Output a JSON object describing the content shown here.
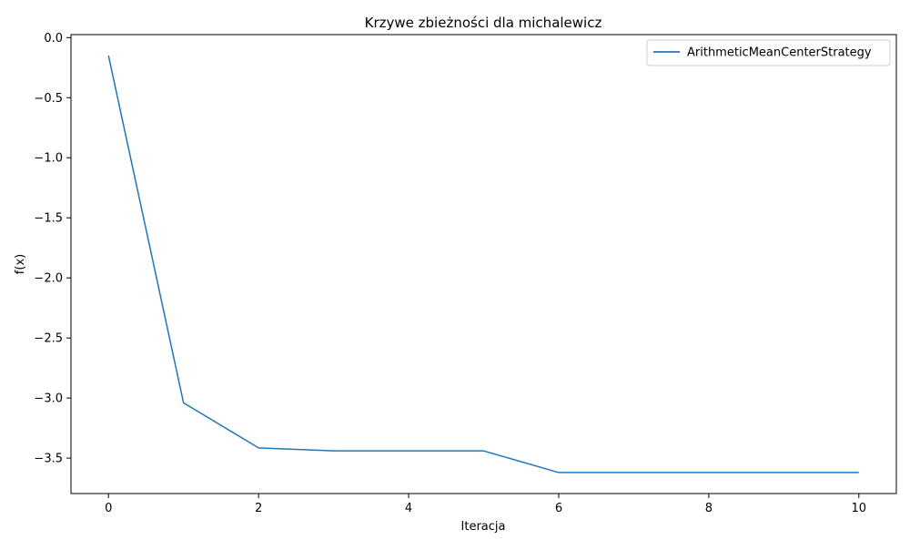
{
  "chart_data": {
    "type": "line",
    "title": "Krzywe zbieżności dla michalewicz",
    "xlabel": "Iteracja",
    "ylabel": "f(x)",
    "x": [
      0,
      1,
      2,
      3,
      4,
      5,
      6,
      7,
      8,
      9,
      10
    ],
    "series": [
      {
        "name": "ArithmeticMeanCenterStrategy",
        "color": "#1f77b4",
        "values": [
          -0.15,
          -3.04,
          -3.415,
          -3.44,
          -3.44,
          -3.44,
          -3.62,
          -3.62,
          -3.62,
          -3.62,
          -3.62
        ]
      }
    ],
    "xlim": [
      -0.5,
      10.5
    ],
    "ylim": [
      -3.795,
      0.025
    ],
    "xticks": [
      0,
      2,
      4,
      6,
      8,
      10
    ],
    "xtick_labels": [
      "0",
      "2",
      "4",
      "6",
      "8",
      "10"
    ],
    "yticks": [
      0.0,
      -0.5,
      -1.0,
      -1.5,
      -2.0,
      -2.5,
      -3.0,
      -3.5
    ],
    "ytick_labels": [
      "0.0",
      "−0.5",
      "−1.0",
      "−1.5",
      "−2.0",
      "−2.5",
      "−3.0",
      "−3.5"
    ],
    "grid": false,
    "legend_position": "top-right"
  }
}
